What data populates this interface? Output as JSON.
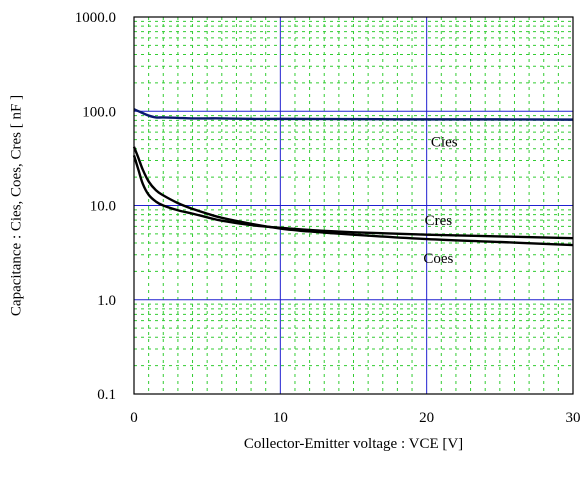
{
  "chart_data": {
    "type": "line",
    "title": "",
    "xlabel": "Collector-Emitter voltage : VCE [V]",
    "ylabel": "Capacitance  :  Cies, Coes, Cres  [ nF ]",
    "xlim": [
      0,
      30
    ],
    "ylim": [
      0.1,
      1000
    ],
    "yscale": "log",
    "x_ticks": [
      0,
      10,
      20,
      30
    ],
    "x_tick_labels": [
      "0",
      "10",
      "20",
      "30"
    ],
    "y_ticks": [
      0.1,
      1,
      10,
      100,
      1000
    ],
    "y_tick_labels": [
      "0.1",
      "1.0",
      "10.0",
      "100.0",
      "1000.0"
    ],
    "grid": true,
    "legend": "none",
    "colors": {
      "major_grid": "#2020d0",
      "minor_grid": "#33cc33",
      "cies": "#0a1a6e",
      "coes": "#000000",
      "cres": "#000000",
      "frame": "#000000"
    },
    "series": [
      {
        "name": "Cies",
        "x": [
          0,
          0.5,
          1,
          1.5,
          2,
          3,
          4,
          5,
          6,
          8,
          10,
          15,
          20,
          25,
          30
        ],
        "values": [
          105,
          97,
          90,
          86,
          86,
          85,
          84,
          84,
          84,
          83,
          83,
          82.5,
          82,
          82,
          81.5
        ]
      },
      {
        "name": "Cres",
        "x": [
          0,
          0.3,
          0.6,
          1,
          1.5,
          2,
          3,
          4,
          5,
          6,
          8,
          10,
          12,
          15,
          20,
          25,
          30
        ],
        "values": [
          42,
          32,
          24,
          18,
          14.5,
          12.8,
          10.6,
          9.2,
          8.2,
          7.4,
          6.4,
          5.7,
          5.3,
          4.9,
          4.4,
          4.1,
          3.8
        ]
      },
      {
        "name": "Coes",
        "x": [
          0,
          0.3,
          0.6,
          1,
          1.5,
          2,
          3,
          4,
          5,
          6,
          8,
          10,
          12,
          15,
          20,
          25,
          30
        ],
        "values": [
          34,
          24,
          17,
          13,
          11,
          10,
          8.9,
          8.2,
          7.5,
          6.9,
          6.2,
          5.8,
          5.5,
          5.2,
          4.9,
          4.7,
          4.5
        ]
      }
    ]
  }
}
